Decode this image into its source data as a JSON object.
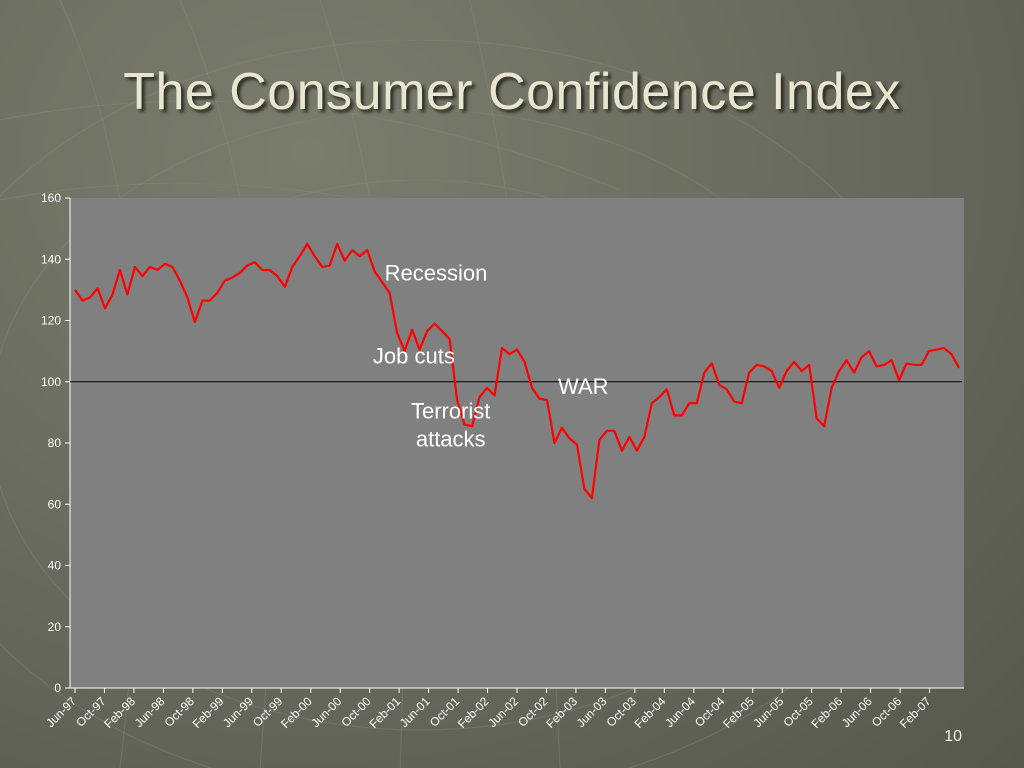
{
  "slide": {
    "title": "The Consumer Confidence Index",
    "number": "10"
  },
  "colors": {
    "plot_background": "#808080",
    "series_line": "#ff0000",
    "reference_line": "#000000",
    "tick_text": "#ffffff",
    "annotation_text": "#ffffff"
  },
  "chart_data": {
    "type": "line",
    "title": "",
    "xlabel": "",
    "ylabel": "",
    "ylim": [
      0,
      160
    ],
    "yticks": [
      0,
      20,
      40,
      60,
      80,
      100,
      120,
      140,
      160
    ],
    "reference_line": 100,
    "grid": false,
    "legend": "none",
    "x_tick_labels": [
      "Jun-97",
      "Oct-97",
      "Feb-98",
      "Jun-98",
      "Oct-98",
      "Feb-99",
      "Jun-99",
      "Oct-99",
      "Feb-00",
      "Jun-00",
      "Oct-00",
      "Feb-01",
      "Jun-01",
      "Oct-01",
      "Feb-02",
      "Jun-02",
      "Oct-02",
      "Feb-03",
      "Jun-03",
      "Oct-03",
      "Feb-04",
      "Jun-04",
      "Oct-04",
      "Feb-05",
      "Jun-05",
      "Oct-05",
      "Feb-06",
      "Jun-06",
      "Oct-06",
      "Feb-07"
    ],
    "x_start": "Jun-97",
    "x_end": "Jun-07",
    "series": [
      {
        "values": [
          130,
          126.5,
          127.5,
          130.5,
          124,
          128.5,
          136.5,
          128.5,
          137.5,
          134.5,
          137.5,
          136.5,
          138.5,
          137.5,
          133,
          127.5,
          119.5,
          126.5,
          126.5,
          129,
          133,
          134,
          135.5,
          138,
          139,
          136.5,
          136.5,
          134.5,
          131,
          137.5,
          141,
          145,
          141,
          137.5,
          138,
          145,
          139.5,
          143,
          141,
          143,
          136,
          132.5,
          129,
          116,
          110,
          117,
          110.5,
          116.5,
          119,
          116.5,
          114,
          94,
          86,
          85.5,
          95,
          98,
          95.5,
          111,
          109,
          110.5,
          106.5,
          98,
          94.5,
          94,
          80,
          85,
          81.5,
          79.5,
          65,
          62,
          81,
          84,
          84,
          77.5,
          82,
          77.5,
          82,
          93,
          95,
          97.5,
          89,
          89,
          93,
          93,
          103,
          106,
          99,
          97.5,
          93.5,
          93,
          103,
          105.5,
          105,
          103.5,
          98,
          103.5,
          106.5,
          103.5,
          105.5,
          88,
          85.5,
          98,
          103.5,
          107,
          103,
          108,
          110,
          105,
          105.5,
          107,
          100.5,
          106,
          105.5,
          105.5,
          110,
          110.5,
          111,
          109,
          104.5
        ]
      }
    ],
    "annotations": [
      {
        "lines": [
          "Recession"
        ],
        "x": "Jul-01",
        "y": 133
      },
      {
        "lines": [
          "Job cuts"
        ],
        "x": "Apr-01",
        "y": 106
      },
      {
        "lines": [
          "Terrorist",
          "attacks"
        ],
        "x": "Sep-01",
        "y": 88
      },
      {
        "lines": [
          "WAR"
        ],
        "x": "Mar-03",
        "y": 96
      }
    ]
  }
}
